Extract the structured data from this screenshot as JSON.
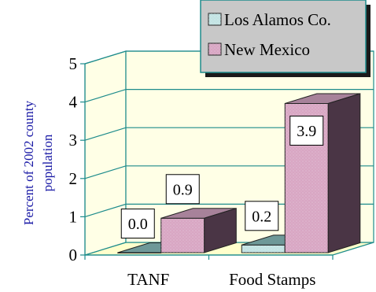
{
  "chart_data": {
    "type": "bar",
    "categories": [
      "TANF",
      "Food Stamps"
    ],
    "series": [
      {
        "name": "Los Alamos Co.",
        "values": [
          0.0,
          0.2
        ],
        "labels": [
          "0.0",
          "0.2"
        ]
      },
      {
        "name": "New Mexico",
        "values": [
          0.9,
          3.9
        ],
        "labels": [
          "0.9",
          "3.9"
        ]
      }
    ],
    "ylabel_lines": [
      "Percent of 2002 county",
      "population"
    ],
    "xlabel": "",
    "ylim": [
      0,
      5
    ],
    "yticks": [
      "0",
      "1",
      "2",
      "3",
      "4",
      "5"
    ],
    "grid": true,
    "legend_position": "top-right",
    "three_d": true
  },
  "colors": {
    "wall": "#ffffe6",
    "floor": "#ffffcc",
    "grid": "#1e8c8c",
    "axis_text": "#000000",
    "ylabel": "#1a1aa6",
    "series_front": [
      "#c2e3e3",
      "#d8a6c3"
    ],
    "series_top": [
      "#6e9898",
      "#a7829a"
    ],
    "series_side": [
      "#476868",
      "#4a3545"
    ],
    "legend_bg": "#c8c8c8",
    "legend_shadow": "#1a1a1a",
    "legend_border": "#1e8c8c"
  }
}
